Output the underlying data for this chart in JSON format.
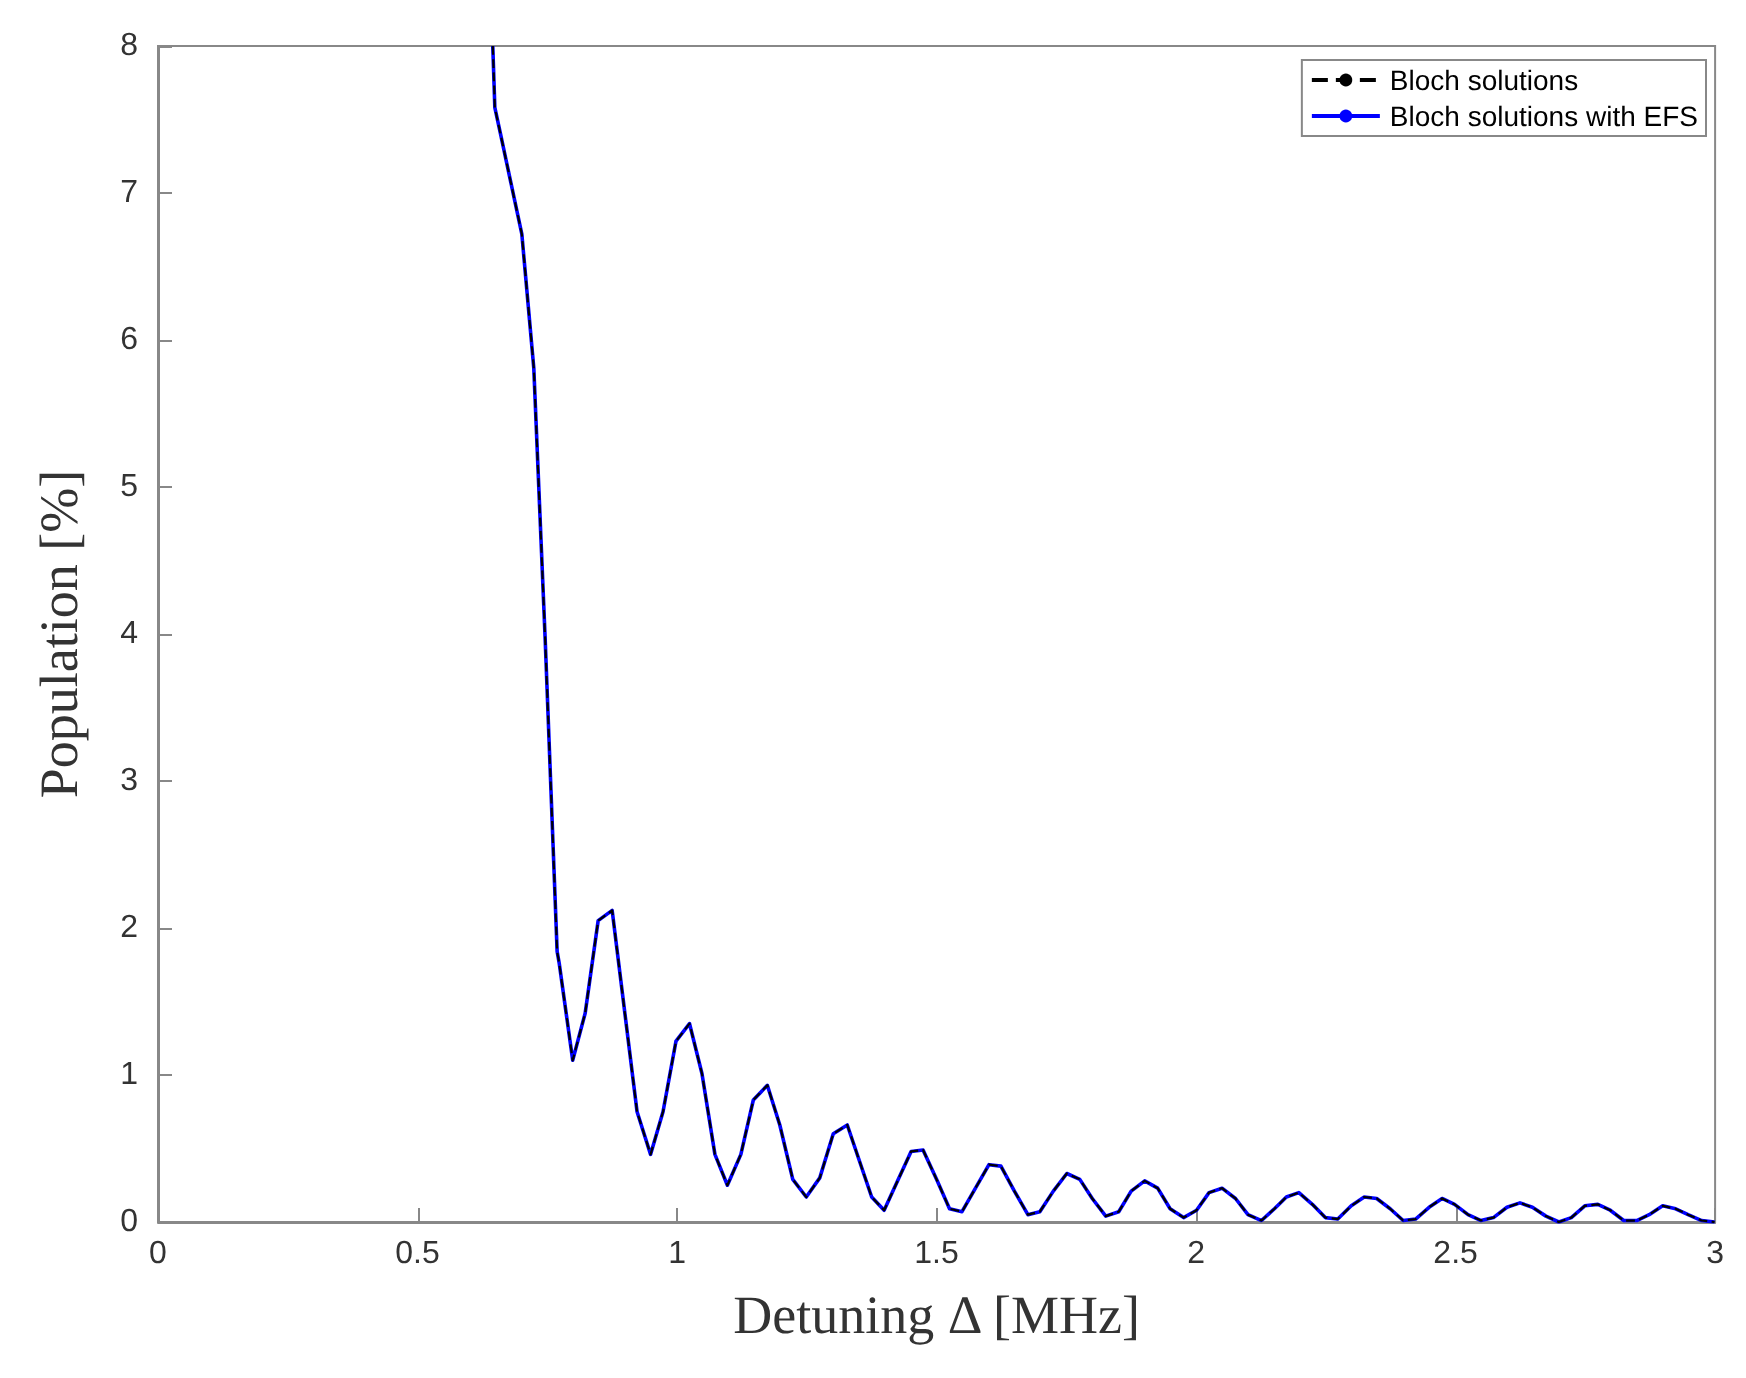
{
  "chart_data": {
    "type": "line",
    "xlabel": "Detuning Δ [MHz]",
    "ylabel": "Population [%]",
    "x": [
      0.645,
      0.649,
      0.66,
      0.701,
      0.724,
      0.746,
      0.769,
      0.773,
      0.799,
      0.823,
      0.848,
      0.875,
      0.896,
      0.923,
      0.949,
      0.973,
      0.998,
      1.024,
      1.048,
      1.073,
      1.097,
      1.123,
      1.147,
      1.174,
      1.198,
      1.223,
      1.249,
      1.275,
      1.301,
      1.328,
      1.35,
      1.375,
      1.399,
      1.425,
      1.451,
      1.474,
      1.5,
      1.525,
      1.549,
      1.575,
      1.601,
      1.624,
      1.65,
      1.676,
      1.699,
      1.725,
      1.751,
      1.776,
      1.8,
      1.826,
      1.851,
      1.875,
      1.901,
      1.926,
      1.95,
      1.976,
      2.001,
      2.025,
      2.05,
      2.076,
      2.1,
      2.126,
      2.151,
      2.174,
      2.198,
      2.224,
      2.249,
      2.273,
      2.299,
      2.324,
      2.348,
      2.374,
      2.399,
      2.423,
      2.449,
      2.474,
      2.498,
      2.524,
      2.549,
      2.573,
      2.599,
      2.624,
      2.648,
      2.674,
      2.699,
      2.723,
      2.749,
      2.774,
      2.798,
      2.824,
      2.849,
      2.873,
      2.899,
      2.924,
      2.948,
      2.974,
      2.999
    ],
    "series": [
      {
        "name": "Bloch solutions",
        "color": "#000000",
        "line_style": "dashed",
        "values": [
          8.0,
          7.58,
          7.4,
          6.72,
          5.81,
          3.96,
          1.84,
          1.76,
          1.1,
          1.42,
          2.05,
          2.12,
          1.52,
          0.75,
          0.46,
          0.75,
          1.23,
          1.35,
          1.01,
          0.46,
          0.25,
          0.46,
          0.83,
          0.93,
          0.66,
          0.29,
          0.17,
          0.3,
          0.6,
          0.66,
          0.43,
          0.17,
          0.08,
          0.28,
          0.48,
          0.49,
          0.29,
          0.09,
          0.07,
          0.23,
          0.39,
          0.38,
          0.21,
          0.05,
          0.07,
          0.21,
          0.33,
          0.29,
          0.16,
          0.04,
          0.07,
          0.21,
          0.28,
          0.23,
          0.09,
          0.03,
          0.08,
          0.2,
          0.23,
          0.16,
          0.05,
          0.01,
          0.09,
          0.17,
          0.2,
          0.12,
          0.03,
          0.02,
          0.11,
          0.17,
          0.16,
          0.09,
          0.01,
          0.02,
          0.1,
          0.16,
          0.12,
          0.05,
          0.01,
          0.03,
          0.1,
          0.13,
          0.1,
          0.04,
          0.0,
          0.03,
          0.11,
          0.12,
          0.08,
          0.01,
          0.01,
          0.05,
          0.11,
          0.09,
          0.05,
          0.01,
          0.0
        ]
      },
      {
        "name": "Bloch solutions with EFS",
        "color": "#0000ff",
        "line_style": "solid",
        "values": [
          8.0,
          7.58,
          7.4,
          6.72,
          5.81,
          3.96,
          1.84,
          1.76,
          1.1,
          1.42,
          2.05,
          2.12,
          1.52,
          0.75,
          0.46,
          0.75,
          1.23,
          1.35,
          1.01,
          0.46,
          0.25,
          0.46,
          0.83,
          0.93,
          0.66,
          0.29,
          0.17,
          0.3,
          0.6,
          0.66,
          0.43,
          0.17,
          0.08,
          0.28,
          0.48,
          0.49,
          0.29,
          0.09,
          0.07,
          0.23,
          0.39,
          0.38,
          0.21,
          0.05,
          0.07,
          0.21,
          0.33,
          0.29,
          0.16,
          0.04,
          0.07,
          0.21,
          0.28,
          0.23,
          0.09,
          0.03,
          0.08,
          0.2,
          0.23,
          0.16,
          0.05,
          0.01,
          0.09,
          0.17,
          0.2,
          0.12,
          0.03,
          0.02,
          0.11,
          0.17,
          0.16,
          0.09,
          0.01,
          0.02,
          0.1,
          0.16,
          0.12,
          0.05,
          0.01,
          0.03,
          0.1,
          0.13,
          0.1,
          0.04,
          0.0,
          0.03,
          0.11,
          0.12,
          0.08,
          0.01,
          0.01,
          0.05,
          0.11,
          0.09,
          0.05,
          0.01,
          0.0
        ]
      }
    ],
    "xlim": [
      0,
      3
    ],
    "xticks": [
      0,
      0.5,
      1,
      1.5,
      2,
      2.5,
      3
    ],
    "ylim": [
      0,
      8
    ],
    "yticks": [
      0,
      1,
      2,
      3,
      4,
      5,
      6,
      7,
      8
    ],
    "grid": false,
    "legend": "top right",
    "marker": "none"
  }
}
